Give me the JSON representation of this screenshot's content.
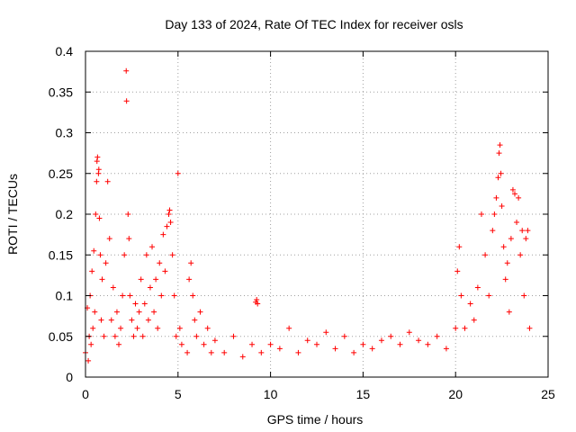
{
  "chart_data": {
    "type": "scatter",
    "title": "Day 133 of 2024, Rate Of TEC Index for receiver osls",
    "xlabel": "GPS time / hours",
    "ylabel": "ROTI / TECUs",
    "xlim": [
      0,
      25
    ],
    "ylim": [
      0,
      0.4
    ],
    "x_ticks": [
      0,
      5,
      10,
      15,
      20,
      25
    ],
    "x_tick_labels": [
      "0",
      "5",
      "10",
      "15",
      "20",
      "25"
    ],
    "y_ticks": [
      0,
      0.05,
      0.1,
      0.15,
      0.2,
      0.25,
      0.3,
      0.35,
      0.4
    ],
    "y_tick_labels": [
      "0",
      "0.05",
      "0.1",
      "0.15",
      "0.2",
      "0.25",
      "0.3",
      "0.35",
      "0.4"
    ],
    "grid": true,
    "marker": "+",
    "color": "#ff0000",
    "series": [
      {
        "name": "ROTI",
        "points": [
          [
            0.0,
            0.03
          ],
          [
            0.1,
            0.085
          ],
          [
            0.15,
            0.02
          ],
          [
            0.2,
            0.05
          ],
          [
            0.25,
            0.1
          ],
          [
            0.3,
            0.04
          ],
          [
            0.35,
            0.13
          ],
          [
            0.4,
            0.06
          ],
          [
            0.45,
            0.155
          ],
          [
            0.5,
            0.08
          ],
          [
            0.55,
            0.2
          ],
          [
            0.6,
            0.24
          ],
          [
            0.62,
            0.265
          ],
          [
            0.65,
            0.27
          ],
          [
            0.7,
            0.25
          ],
          [
            0.72,
            0.255
          ],
          [
            0.75,
            0.195
          ],
          [
            0.8,
            0.15
          ],
          [
            0.85,
            0.07
          ],
          [
            0.9,
            0.12
          ],
          [
            1.0,
            0.05
          ],
          [
            1.1,
            0.14
          ],
          [
            1.2,
            0.24
          ],
          [
            1.3,
            0.17
          ],
          [
            1.4,
            0.07
          ],
          [
            1.5,
            0.11
          ],
          [
            1.6,
            0.05
          ],
          [
            1.7,
            0.08
          ],
          [
            1.8,
            0.04
          ],
          [
            1.9,
            0.06
          ],
          [
            2.0,
            0.1
          ],
          [
            2.1,
            0.15
          ],
          [
            2.2,
            0.376
          ],
          [
            2.22,
            0.339
          ],
          [
            2.3,
            0.2
          ],
          [
            2.35,
            0.17
          ],
          [
            2.4,
            0.1
          ],
          [
            2.5,
            0.07
          ],
          [
            2.6,
            0.05
          ],
          [
            2.7,
            0.09
          ],
          [
            2.8,
            0.06
          ],
          [
            2.9,
            0.08
          ],
          [
            3.0,
            0.12
          ],
          [
            3.1,
            0.05
          ],
          [
            3.2,
            0.09
          ],
          [
            3.3,
            0.15
          ],
          [
            3.4,
            0.07
          ],
          [
            3.5,
            0.11
          ],
          [
            3.6,
            0.16
          ],
          [
            3.7,
            0.08
          ],
          [
            3.8,
            0.12
          ],
          [
            3.9,
            0.06
          ],
          [
            4.0,
            0.14
          ],
          [
            4.1,
            0.1
          ],
          [
            4.2,
            0.175
          ],
          [
            4.3,
            0.13
          ],
          [
            4.4,
            0.185
          ],
          [
            4.5,
            0.2
          ],
          [
            4.55,
            0.205
          ],
          [
            4.6,
            0.19
          ],
          [
            4.7,
            0.15
          ],
          [
            4.8,
            0.1
          ],
          [
            4.9,
            0.05
          ],
          [
            5.0,
            0.25
          ],
          [
            5.1,
            0.06
          ],
          [
            5.2,
            0.04
          ],
          [
            5.5,
            0.03
          ],
          [
            5.6,
            0.12
          ],
          [
            5.7,
            0.14
          ],
          [
            5.8,
            0.1
          ],
          [
            5.9,
            0.07
          ],
          [
            6.0,
            0.05
          ],
          [
            6.2,
            0.08
          ],
          [
            6.4,
            0.04
          ],
          [
            6.6,
            0.06
          ],
          [
            6.8,
            0.03
          ],
          [
            7.0,
            0.045
          ],
          [
            7.5,
            0.03
          ],
          [
            8.0,
            0.05
          ],
          [
            8.5,
            0.025
          ],
          [
            9.0,
            0.04
          ],
          [
            9.2,
            0.092
          ],
          [
            9.25,
            0.095
          ],
          [
            9.3,
            0.09
          ],
          [
            9.5,
            0.03
          ],
          [
            10.0,
            0.04
          ],
          [
            10.5,
            0.035
          ],
          [
            11.0,
            0.06
          ],
          [
            11.5,
            0.03
          ],
          [
            12.0,
            0.045
          ],
          [
            12.5,
            0.04
          ],
          [
            13.0,
            0.055
          ],
          [
            13.5,
            0.035
          ],
          [
            14.0,
            0.05
          ],
          [
            14.5,
            0.03
          ],
          [
            15.0,
            0.04
          ],
          [
            15.5,
            0.035
          ],
          [
            16.0,
            0.045
          ],
          [
            16.5,
            0.05
          ],
          [
            17.0,
            0.04
          ],
          [
            17.5,
            0.055
          ],
          [
            18.0,
            0.045
          ],
          [
            18.5,
            0.04
          ],
          [
            19.0,
            0.05
          ],
          [
            19.5,
            0.035
          ],
          [
            20.0,
            0.06
          ],
          [
            20.1,
            0.13
          ],
          [
            20.2,
            0.16
          ],
          [
            20.3,
            0.1
          ],
          [
            20.5,
            0.06
          ],
          [
            20.8,
            0.09
          ],
          [
            21.0,
            0.07
          ],
          [
            21.2,
            0.11
          ],
          [
            21.4,
            0.2
          ],
          [
            21.6,
            0.15
          ],
          [
            21.8,
            0.1
          ],
          [
            22.0,
            0.18
          ],
          [
            22.1,
            0.2
          ],
          [
            22.2,
            0.22
          ],
          [
            22.3,
            0.245
          ],
          [
            22.35,
            0.275
          ],
          [
            22.4,
            0.285
          ],
          [
            22.45,
            0.25
          ],
          [
            22.5,
            0.21
          ],
          [
            22.6,
            0.16
          ],
          [
            22.7,
            0.12
          ],
          [
            22.8,
            0.14
          ],
          [
            22.9,
            0.08
          ],
          [
            23.0,
            0.17
          ],
          [
            23.1,
            0.23
          ],
          [
            23.2,
            0.225
          ],
          [
            23.3,
            0.19
          ],
          [
            23.4,
            0.22
          ],
          [
            23.5,
            0.15
          ],
          [
            23.6,
            0.18
          ],
          [
            23.7,
            0.1
          ],
          [
            23.8,
            0.17
          ],
          [
            23.9,
            0.18
          ],
          [
            24.0,
            0.06
          ]
        ]
      }
    ]
  }
}
